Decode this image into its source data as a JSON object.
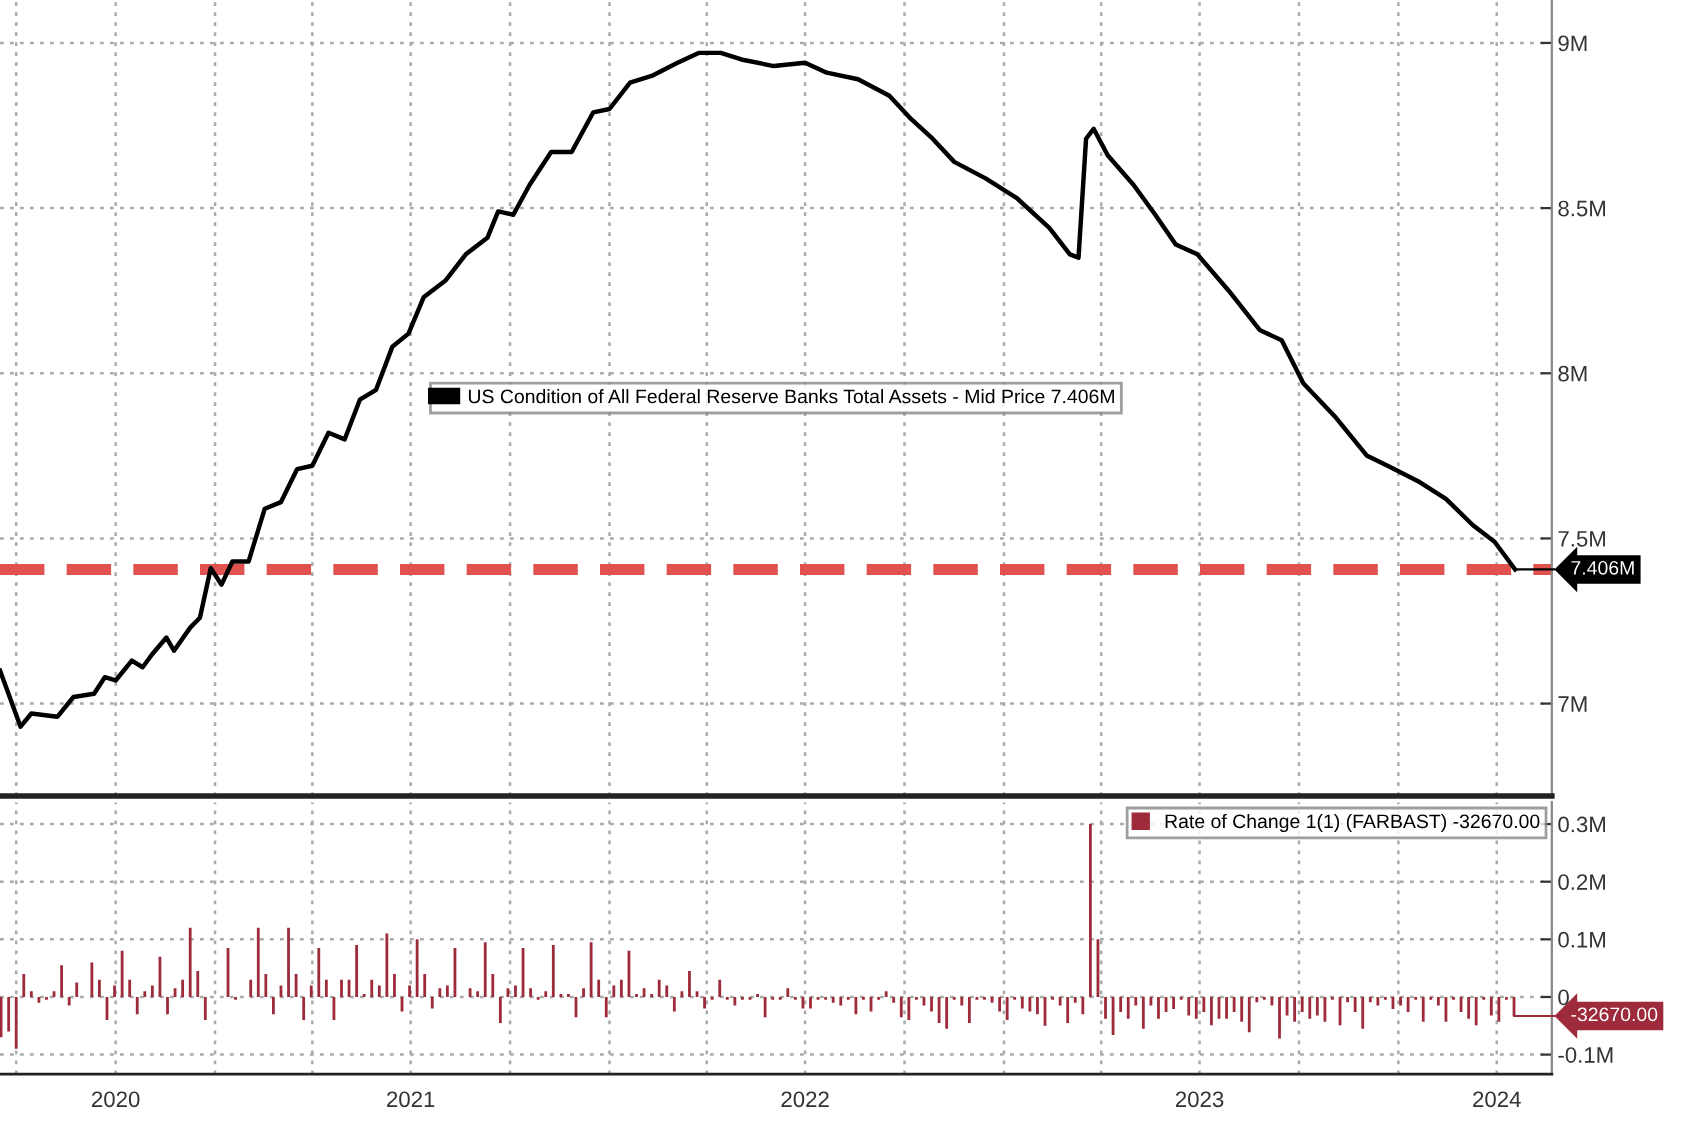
{
  "chart_data": [
    {
      "type": "line",
      "tick_labels": "y",
      "grid": true,
      "legend": "center",
      "marker": "none",
      "line_style": "solid",
      "xlim": [
        "2020-06-16",
        "2024-05-22"
      ],
      "xticks": [
        {
          "value": "2020-07-01",
          "label": null
        },
        {
          "value": "2020-10-01",
          "label": null
        },
        {
          "value": "2021-01-01",
          "label": null
        },
        {
          "value": "2021-04-01",
          "label": null
        },
        {
          "value": "2021-07-01",
          "label": null
        },
        {
          "value": "2021-10-01",
          "label": null
        },
        {
          "value": "2022-01-01",
          "label": null
        },
        {
          "value": "2022-04-01",
          "label": null
        },
        {
          "value": "2022-07-01",
          "label": null
        },
        {
          "value": "2022-10-01",
          "label": null
        },
        {
          "value": "2023-01-01",
          "label": null
        },
        {
          "value": "2023-04-01",
          "label": null
        },
        {
          "value": "2023-07-01",
          "label": null
        },
        {
          "value": "2023-10-01",
          "label": null
        },
        {
          "value": "2024-01-01",
          "label": null
        },
        {
          "value": "2024-04-01",
          "label": null
        }
      ],
      "ylim": [
        6.72,
        9.13
      ],
      "yticks": [
        {
          "value": 7,
          "label": "7M"
        },
        {
          "value": 7.5,
          "label": "7.5M"
        },
        {
          "value": 8,
          "label": "8M"
        },
        {
          "value": 8.5,
          "label": "8.5M"
        },
        {
          "value": 9,
          "label": "9M"
        }
      ],
      "series": [
        {
          "name": "US Condition of All Federal Reserve Banks Total Assets - Mid Price 7.406M",
          "color": "#000000",
          "x": [
            "2020-06-16",
            "2020-07-05",
            "2020-07-15",
            "2020-08-08",
            "2020-08-23",
            "2020-09-11",
            "2020-09-21",
            "2020-10-01",
            "2020-10-16",
            "2020-10-26",
            "2020-11-04",
            "2020-11-17",
            "2020-11-24",
            "2020-12-09",
            "2020-12-18",
            "2020-12-28",
            "2021-01-07",
            "2021-01-17",
            "2021-02-01",
            "2021-02-16",
            "2021-03-03",
            "2021-03-18",
            "2021-04-01",
            "2021-04-16",
            "2021-05-01",
            "2021-05-15",
            "2021-05-30",
            "2021-06-14",
            "2021-06-29",
            "2021-07-13",
            "2021-08-02",
            "2021-08-21",
            "2021-09-10",
            "2021-09-20",
            "2021-10-04",
            "2021-10-19",
            "2021-11-08",
            "2021-11-27",
            "2021-12-17",
            "2022-01-01",
            "2022-01-20",
            "2022-02-09",
            "2022-03-05",
            "2022-03-25",
            "2022-04-14",
            "2022-05-03",
            "2022-06-02",
            "2022-07-01",
            "2022-07-21",
            "2022-08-19",
            "2022-09-17",
            "2022-10-07",
            "2022-10-27",
            "2022-11-16",
            "2022-12-15",
            "2023-01-13",
            "2023-02-12",
            "2023-03-03",
            "2023-03-11",
            "2023-03-18",
            "2023-03-25",
            "2023-04-07",
            "2023-05-01",
            "2023-05-21",
            "2023-06-09",
            "2023-06-29",
            "2023-07-28",
            "2023-08-26",
            "2023-09-15",
            "2023-10-05",
            "2023-11-03",
            "2023-12-03",
            "2023-12-22",
            "2024-01-21",
            "2024-02-14",
            "2024-03-10",
            "2024-03-30",
            "2024-04-18"
          ],
          "values": [
            7.1,
            6.93,
            6.97,
            6.96,
            7.02,
            7.03,
            7.08,
            7.07,
            7.13,
            7.11,
            7.15,
            7.2,
            7.16,
            7.23,
            7.26,
            7.41,
            7.36,
            7.43,
            7.43,
            7.59,
            7.61,
            7.71,
            7.72,
            7.82,
            7.8,
            7.92,
            7.95,
            8.08,
            8.12,
            8.23,
            8.28,
            8.36,
            8.41,
            8.49,
            8.48,
            8.57,
            8.67,
            8.67,
            8.79,
            8.8,
            8.88,
            8.9,
            8.94,
            8.97,
            8.97,
            8.95,
            8.93,
            8.94,
            8.91,
            8.89,
            8.84,
            8.77,
            8.71,
            8.64,
            8.59,
            8.53,
            8.44,
            8.36,
            8.35,
            8.71,
            8.74,
            8.66,
            8.57,
            8.48,
            8.39,
            8.36,
            8.25,
            8.13,
            8.1,
            7.97,
            7.87,
            7.75,
            7.72,
            7.67,
            7.62,
            7.54,
            7.49,
            7.406
          ]
        }
      ],
      "ref_lines": [
        {
          "axis": "y",
          "value": 7.406,
          "color": "#e0524f",
          "line_style": "dashed"
        }
      ],
      "annotations": [
        {
          "text": "7.406M",
          "x": "2024-04-18",
          "y": 7.406
        }
      ]
    },
    {
      "type": "bar",
      "grid": true,
      "legend": "top right",
      "xlim": [
        "2020-06-16",
        "2024-05-22"
      ],
      "xticks": [
        {
          "value": "2020-07-01",
          "label": null
        },
        {
          "value": "2020-10-01",
          "label": "2020"
        },
        {
          "value": "2021-01-01",
          "label": null
        },
        {
          "value": "2021-04-01",
          "label": null
        },
        {
          "value": "2021-07-01",
          "label": "2021"
        },
        {
          "value": "2021-10-01",
          "label": null
        },
        {
          "value": "2022-01-01",
          "label": null
        },
        {
          "value": "2022-04-01",
          "label": null
        },
        {
          "value": "2022-07-01",
          "label": "2022"
        },
        {
          "value": "2022-10-01",
          "label": null
        },
        {
          "value": "2023-01-01",
          "label": null
        },
        {
          "value": "2023-04-01",
          "label": null
        },
        {
          "value": "2023-07-01",
          "label": "2023"
        },
        {
          "value": "2023-10-01",
          "label": null
        },
        {
          "value": "2024-01-01",
          "label": null
        },
        {
          "value": "2024-04-01",
          "label": "2024"
        }
      ],
      "ylim": [
        -0.134,
        0.338
      ],
      "yticks": [
        {
          "value": -0.1,
          "label": "-0.1M"
        },
        {
          "value": 0,
          "label": "0"
        },
        {
          "value": 0.1,
          "label": "0.1M"
        },
        {
          "value": 0.2,
          "label": "0.2M"
        },
        {
          "value": 0.3,
          "label": "0.3M"
        }
      ],
      "series": [
        {
          "name": "Rate of Change 1(1) (FARBAST) -32670.00",
          "color": "#9e2b3c",
          "x": [
            "2020-06-17",
            "2020-06-24",
            "2020-07-01",
            "2020-07-08",
            "2020-07-15",
            "2020-07-22",
            "2020-07-29",
            "2020-08-05",
            "2020-08-12",
            "2020-08-19",
            "2020-08-26",
            "2020-09-02",
            "2020-09-09",
            "2020-09-16",
            "2020-09-23",
            "2020-09-30",
            "2020-10-07",
            "2020-10-14",
            "2020-10-21",
            "2020-10-28",
            "2020-11-04",
            "2020-11-11",
            "2020-11-18",
            "2020-11-25",
            "2020-12-02",
            "2020-12-09",
            "2020-12-16",
            "2020-12-23",
            "2020-12-30",
            "2021-01-06",
            "2021-01-13",
            "2021-01-20",
            "2021-01-27",
            "2021-02-03",
            "2021-02-10",
            "2021-02-17",
            "2021-02-24",
            "2021-03-03",
            "2021-03-10",
            "2021-03-17",
            "2021-03-24",
            "2021-03-31",
            "2021-04-07",
            "2021-04-14",
            "2021-04-21",
            "2021-04-28",
            "2021-05-05",
            "2021-05-12",
            "2021-05-19",
            "2021-05-26",
            "2021-06-02",
            "2021-06-09",
            "2021-06-16",
            "2021-06-23",
            "2021-06-30",
            "2021-07-07",
            "2021-07-14",
            "2021-07-21",
            "2021-07-28",
            "2021-08-04",
            "2021-08-11",
            "2021-08-18",
            "2021-08-25",
            "2021-09-01",
            "2021-09-08",
            "2021-09-15",
            "2021-09-22",
            "2021-09-29",
            "2021-10-06",
            "2021-10-13",
            "2021-10-20",
            "2021-10-27",
            "2021-11-03",
            "2021-11-10",
            "2021-11-17",
            "2021-11-24",
            "2021-12-01",
            "2021-12-08",
            "2021-12-15",
            "2021-12-22",
            "2021-12-29",
            "2022-01-05",
            "2022-01-12",
            "2022-01-19",
            "2022-01-26",
            "2022-02-02",
            "2022-02-09",
            "2022-02-16",
            "2022-02-23",
            "2022-03-02",
            "2022-03-09",
            "2022-03-16",
            "2022-03-23",
            "2022-03-30",
            "2022-04-06",
            "2022-04-13",
            "2022-04-20",
            "2022-04-27",
            "2022-05-04",
            "2022-05-11",
            "2022-05-18",
            "2022-05-25",
            "2022-06-01",
            "2022-06-08",
            "2022-06-15",
            "2022-06-22",
            "2022-06-29",
            "2022-07-06",
            "2022-07-13",
            "2022-07-20",
            "2022-07-27",
            "2022-08-03",
            "2022-08-10",
            "2022-08-17",
            "2022-08-24",
            "2022-08-31",
            "2022-09-07",
            "2022-09-14",
            "2022-09-21",
            "2022-09-28",
            "2022-10-05",
            "2022-10-12",
            "2022-10-19",
            "2022-10-26",
            "2022-11-02",
            "2022-11-09",
            "2022-11-16",
            "2022-11-23",
            "2022-11-30",
            "2022-12-07",
            "2022-12-14",
            "2022-12-21",
            "2022-12-28",
            "2023-01-04",
            "2023-01-11",
            "2023-01-18",
            "2023-01-25",
            "2023-02-01",
            "2023-02-08",
            "2023-02-15",
            "2023-02-22",
            "2023-03-01",
            "2023-03-08",
            "2023-03-15",
            "2023-03-22",
            "2023-03-29",
            "2023-04-05",
            "2023-04-12",
            "2023-04-19",
            "2023-04-26",
            "2023-05-03",
            "2023-05-10",
            "2023-05-17",
            "2023-05-24",
            "2023-05-31",
            "2023-06-07",
            "2023-06-14",
            "2023-06-21",
            "2023-06-28",
            "2023-07-05",
            "2023-07-12",
            "2023-07-19",
            "2023-07-26",
            "2023-08-02",
            "2023-08-09",
            "2023-08-16",
            "2023-08-23",
            "2023-08-30",
            "2023-09-06",
            "2023-09-13",
            "2023-09-20",
            "2023-09-27",
            "2023-10-04",
            "2023-10-11",
            "2023-10-18",
            "2023-10-25",
            "2023-11-01",
            "2023-11-08",
            "2023-11-15",
            "2023-11-22",
            "2023-11-29",
            "2023-12-06",
            "2023-12-13",
            "2023-12-20",
            "2023-12-27",
            "2024-01-03",
            "2024-01-10",
            "2024-01-17",
            "2024-01-24",
            "2024-01-31",
            "2024-02-07",
            "2024-02-14",
            "2024-02-21",
            "2024-02-28",
            "2024-03-06",
            "2024-03-13",
            "2024-03-20",
            "2024-03-27",
            "2024-04-03",
            "2024-04-10",
            "2024-04-17"
          ],
          "values": [
            -0.07,
            -0.06,
            -0.09,
            0.04,
            0.01,
            -0.01,
            -0.005,
            0.01,
            0.055,
            -0.015,
            0.025,
            0.0,
            0.06,
            0.03,
            -0.04,
            0.02,
            0.08,
            0.03,
            -0.03,
            0.01,
            0.02,
            0.07,
            -0.03,
            0.015,
            0.03,
            0.12,
            0.045,
            -0.04,
            0.0,
            0.0,
            0.085,
            -0.005,
            0.0,
            0.03,
            0.12,
            0.04,
            -0.03,
            0.02,
            0.12,
            0.04,
            -0.04,
            0.02,
            0.085,
            0.03,
            -0.04,
            0.03,
            0.03,
            0.09,
            0.005,
            0.03,
            0.02,
            0.11,
            0.04,
            -0.025,
            0.02,
            0.1,
            0.04,
            -0.02,
            0.015,
            0.02,
            0.085,
            0.0,
            0.015,
            0.01,
            0.095,
            0.04,
            -0.045,
            0.015,
            0.02,
            0.085,
            0.015,
            -0.005,
            0.01,
            0.09,
            0.005,
            0.005,
            -0.035,
            0.015,
            0.095,
            0.03,
            -0.035,
            0.02,
            0.03,
            0.08,
            0.005,
            0.015,
            0.005,
            0.03,
            0.02,
            -0.025,
            0.01,
            0.045,
            0.01,
            -0.02,
            -0.005,
            0.03,
            -0.005,
            -0.015,
            -0.005,
            -0.005,
            0.005,
            -0.035,
            -0.005,
            -0.005,
            0.015,
            -0.005,
            -0.02,
            -0.02,
            -0.005,
            -0.005,
            -0.01,
            -0.015,
            -0.005,
            -0.03,
            -0.005,
            -0.025,
            -0.005,
            0.01,
            -0.01,
            -0.035,
            -0.04,
            -0.005,
            -0.015,
            -0.025,
            -0.045,
            -0.055,
            -0.005,
            -0.015,
            -0.045,
            -0.005,
            -0.005,
            -0.01,
            -0.025,
            -0.04,
            -0.005,
            -0.02,
            -0.025,
            -0.03,
            -0.05,
            -0.005,
            -0.015,
            -0.045,
            -0.01,
            -0.03,
            0.3,
            0.1,
            -0.038,
            -0.066,
            -0.026,
            -0.038,
            -0.015,
            -0.055,
            -0.015,
            -0.038,
            -0.026,
            -0.021,
            -0.005,
            -0.032,
            -0.038,
            -0.026,
            -0.049,
            -0.038,
            -0.038,
            -0.026,
            -0.043,
            -0.061,
            -0.009,
            -0.005,
            -0.015,
            -0.072,
            -0.032,
            -0.043,
            -0.026,
            -0.038,
            -0.032,
            -0.043,
            -0.005,
            -0.049,
            -0.009,
            -0.026,
            -0.055,
            -0.009,
            -0.015,
            -0.005,
            -0.021,
            -0.015,
            -0.026,
            -0.005,
            -0.043,
            -0.005,
            -0.015,
            -0.043,
            -0.005,
            -0.026,
            -0.038,
            -0.049,
            -0.005,
            -0.032,
            -0.043,
            -0.005,
            -0.033
          ]
        }
      ],
      "annotations": [
        {
          "text": "-32670.00",
          "x": "2024-04-17",
          "y": -0.033
        }
      ]
    }
  ]
}
